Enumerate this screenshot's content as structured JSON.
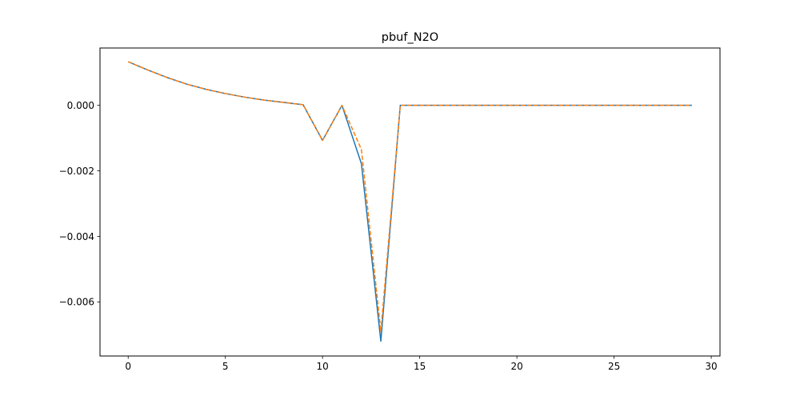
{
  "chart_data": {
    "type": "line",
    "title": "pbuf_N2O",
    "xlabel": "",
    "ylabel": "",
    "xlim": [
      -1.45,
      30.45
    ],
    "ylim": [
      -0.00765,
      0.00175
    ],
    "xticks": [
      0,
      5,
      10,
      15,
      20,
      25,
      30
    ],
    "xtick_labels": [
      "0",
      "5",
      "10",
      "15",
      "20",
      "25",
      "30"
    ],
    "yticks": [
      -0.006,
      -0.004,
      -0.002,
      0.0
    ],
    "ytick_labels": [
      "−0.006",
      "−0.004",
      "−0.002",
      "0.000"
    ],
    "grid": false,
    "x": [
      0,
      1,
      2,
      3,
      4,
      5,
      6,
      7,
      8,
      9,
      10,
      11,
      12,
      13,
      14,
      15,
      16,
      17,
      18,
      19,
      20,
      21,
      22,
      23,
      24,
      25,
      26,
      27,
      28,
      29
    ],
    "series": [
      {
        "color": "#1f77b4",
        "style": "solid",
        "values": [
          0.00133,
          0.00108,
          0.00085,
          0.00065,
          0.00049,
          0.00036,
          0.00025,
          0.00016,
          9e-05,
          2e-05,
          -0.00107,
          0.0,
          -0.00178,
          -0.0072,
          0.0,
          0,
          0,
          0,
          0,
          0,
          0,
          0,
          0,
          0,
          0,
          0,
          0,
          0,
          0,
          0
        ]
      },
      {
        "color": "#ff7f0e",
        "style": "dashed",
        "values": [
          0.00133,
          0.00108,
          0.00085,
          0.00065,
          0.00049,
          0.00036,
          0.00025,
          0.00016,
          9e-05,
          2e-05,
          -0.00107,
          0.0,
          -0.00135,
          -0.0069,
          0.0,
          0,
          0,
          0,
          0,
          0,
          0,
          0,
          0,
          0,
          0,
          0,
          0,
          0,
          0,
          0
        ]
      }
    ]
  }
}
